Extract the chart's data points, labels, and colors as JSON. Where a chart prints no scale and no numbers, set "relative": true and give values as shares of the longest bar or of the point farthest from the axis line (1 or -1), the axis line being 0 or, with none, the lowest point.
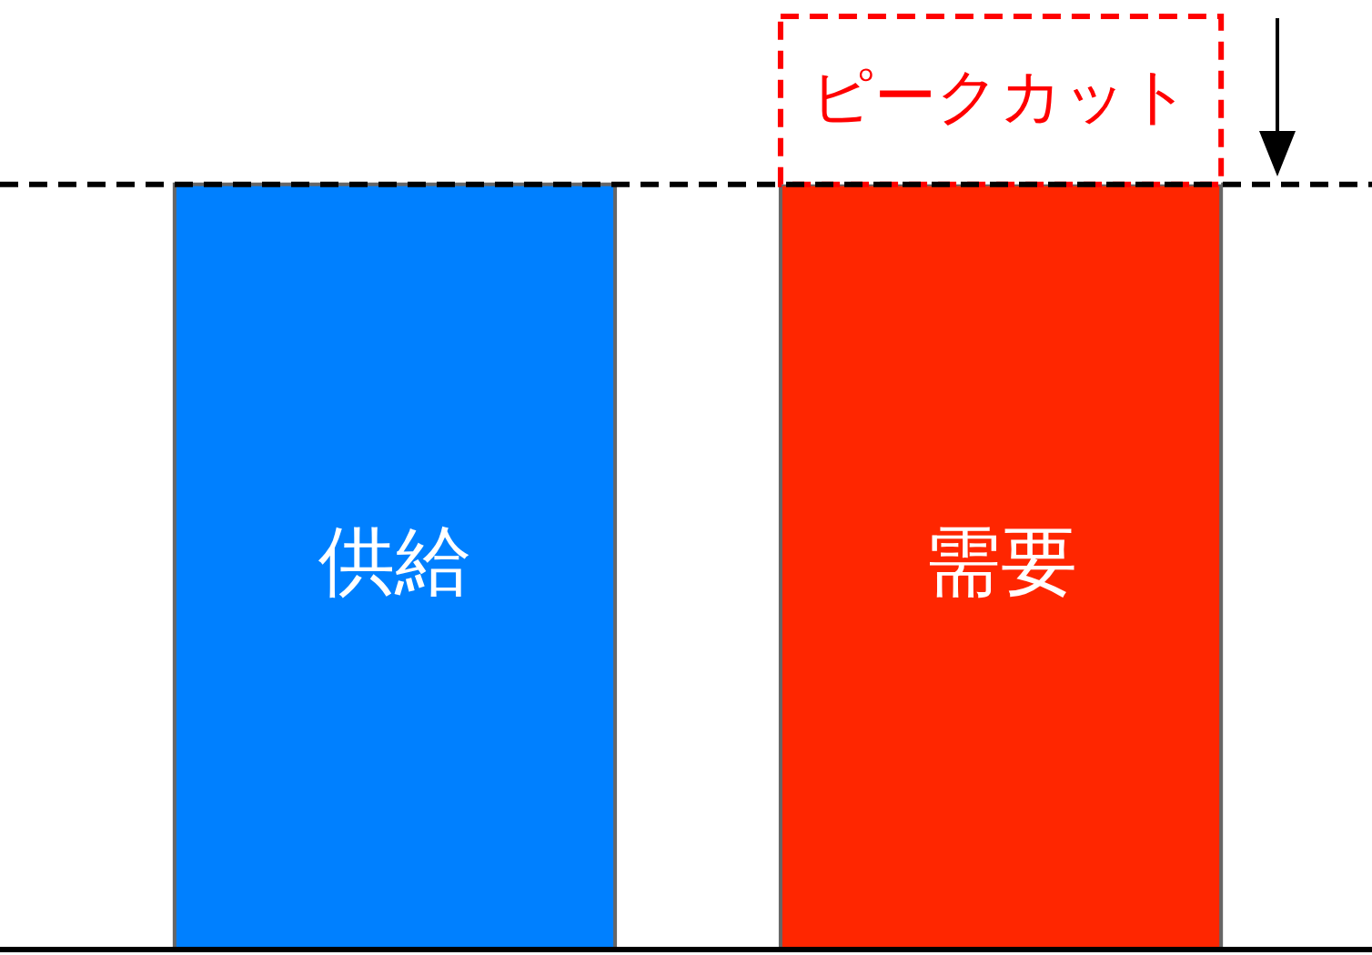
{
  "chart_data": {
    "type": "bar",
    "relative": true,
    "stacked": true,
    "categories": [
      "供給",
      "需要"
    ],
    "series": [
      {
        "colors": [
          "#0080ff",
          "#ff2600"
        ],
        "values": [
          0.82,
          0.82
        ]
      },
      {
        "name": "ピークカット",
        "color": "#ff0000",
        "line_style": "dashed",
        "values": [
          null,
          0.18
        ]
      }
    ],
    "ref_lines": [
      {
        "axis": "y",
        "value": 0.82,
        "line_style": "dashed",
        "color": "#000000"
      }
    ]
  }
}
